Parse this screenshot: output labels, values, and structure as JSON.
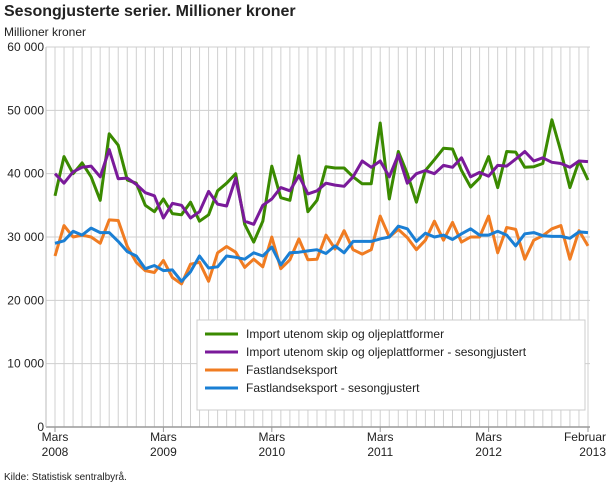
{
  "chart_data": {
    "type": "line",
    "title": "Sesongjusterte serier. Millioner kroner",
    "ylabel": "Millioner kroner",
    "source": "Kilde: Statistisk sentralbyrå.",
    "ylim": [
      0,
      60000
    ],
    "yticks": [
      "0",
      "10 000",
      "20 000",
      "30 000",
      "40 000",
      "50 000",
      "60 000"
    ],
    "xstart": "2008-03",
    "xticks": [
      {
        "month": "Mars",
        "year": "2008",
        "index": 0
      },
      {
        "month": "Mars",
        "year": "2009",
        "index": 12
      },
      {
        "month": "Mars",
        "year": "2010",
        "index": 24
      },
      {
        "month": "Mars",
        "year": "2011",
        "index": 36
      },
      {
        "month": "Mars",
        "year": "2012",
        "index": 48
      },
      {
        "month": "Februar",
        "year": "2013",
        "index": 59
      }
    ],
    "grid": true,
    "legend": "bottom-right",
    "series": [
      {
        "name": "Import utenom skip og oljeplattformer",
        "color": "#3a8a00",
        "values": [
          36500,
          42700,
          40000,
          41700,
          39500,
          35800,
          46300,
          44500,
          39000,
          38500,
          35000,
          34000,
          36000,
          33700,
          33500,
          35500,
          32500,
          33500,
          37300,
          38500,
          40000,
          32000,
          29200,
          32500,
          41200,
          36200,
          35800,
          42800,
          34000,
          35800,
          41100,
          40900,
          40900,
          39500,
          38400,
          38400,
          48000,
          36000,
          43500,
          40000,
          35500,
          40500,
          42200,
          44000,
          43900,
          40500,
          37900,
          39300,
          42700,
          37800,
          43500,
          43400,
          41000,
          41100,
          41600,
          48500,
          43500,
          37800,
          42000,
          39000
        ]
      },
      {
        "name": "Import utenom skip og oljeplattformer - sesongjustert",
        "color": "#7a1a9a",
        "values": [
          40000,
          38500,
          40300,
          41000,
          41200,
          39500,
          43800,
          39200,
          39300,
          38300,
          37000,
          36500,
          33000,
          35300,
          35000,
          33000,
          34000,
          37200,
          35200,
          34900,
          39300,
          32500,
          32000,
          35000,
          36000,
          37800,
          37300,
          39700,
          36800,
          37300,
          38500,
          38200,
          38000,
          39500,
          42000,
          41000,
          42000,
          39500,
          43000,
          38500,
          40000,
          40500,
          40000,
          41300,
          41000,
          42500,
          39500,
          40200,
          39600,
          41300,
          41200,
          42300,
          43500,
          42000,
          42500,
          41800,
          41600,
          41000,
          42000,
          41900
        ]
      },
      {
        "name": "Fastlandseksport",
        "color": "#f07c22",
        "values": [
          27000,
          31800,
          30000,
          30300,
          30000,
          29000,
          32700,
          32600,
          28500,
          26000,
          24700,
          24400,
          26300,
          23600,
          22600,
          25700,
          26000,
          23000,
          27500,
          28500,
          27600,
          25200,
          26500,
          25300,
          30000,
          25000,
          26400,
          29700,
          26400,
          26500,
          30300,
          28100,
          31000,
          28000,
          27300,
          28000,
          33300,
          30000,
          31200,
          29900,
          28000,
          29500,
          32500,
          29500,
          32300,
          29200,
          30000,
          30000,
          33300,
          27500,
          31500,
          31200,
          26500,
          29500,
          30200,
          31300,
          31800,
          26500,
          31000,
          28600
        ]
      },
      {
        "name": "Fastlandseksport - sesongjustert",
        "color": "#1a7fd4",
        "values": [
          29000,
          29400,
          30900,
          30300,
          31400,
          30700,
          30700,
          29300,
          27700,
          27000,
          25000,
          25500,
          24700,
          24800,
          23000,
          24500,
          27000,
          25100,
          25300,
          27000,
          26800,
          26500,
          27500,
          27000,
          28400,
          25600,
          27500,
          27600,
          27800,
          28000,
          27400,
          28600,
          27500,
          29300,
          29300,
          29300,
          29700,
          30000,
          31700,
          31300,
          29300,
          30600,
          30000,
          30300,
          29600,
          30500,
          31300,
          30300,
          30300,
          30900,
          30300,
          28600,
          30500,
          30700,
          30200,
          30100,
          30100,
          29800,
          30800,
          30700
        ]
      }
    ]
  }
}
